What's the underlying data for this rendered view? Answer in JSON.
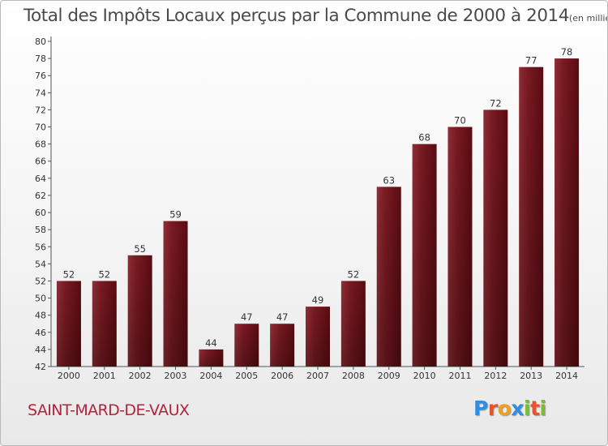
{
  "chart_data": {
    "type": "bar",
    "title": "Total des Impôts Locaux perçus par la Commune de 2000 à 2014",
    "unit_note": "(en milliers d'€)",
    "categories": [
      "2000",
      "2001",
      "2002",
      "2003",
      "2004",
      "2005",
      "2006",
      "2007",
      "2008",
      "2009",
      "2010",
      "2011",
      "2012",
      "2013",
      "2014"
    ],
    "values": [
      52,
      52,
      55,
      59,
      44,
      47,
      47,
      49,
      52,
      63,
      68,
      70,
      72,
      77,
      78
    ],
    "ylim": [
      42,
      80
    ],
    "ytick_step": 2,
    "xlabel": "",
    "ylabel": "",
    "grid": false,
    "bar_color": "#7a1a22"
  },
  "commune_name": "SAINT-MARD-DE-VAUX",
  "logo": {
    "text": "Proxiti",
    "letter_colors": [
      "#2f8ee0",
      "#e8542a",
      "#f0a01c",
      "#2f8ee0",
      "#7abd2e",
      "#e8542a",
      "#7abd2e"
    ]
  }
}
